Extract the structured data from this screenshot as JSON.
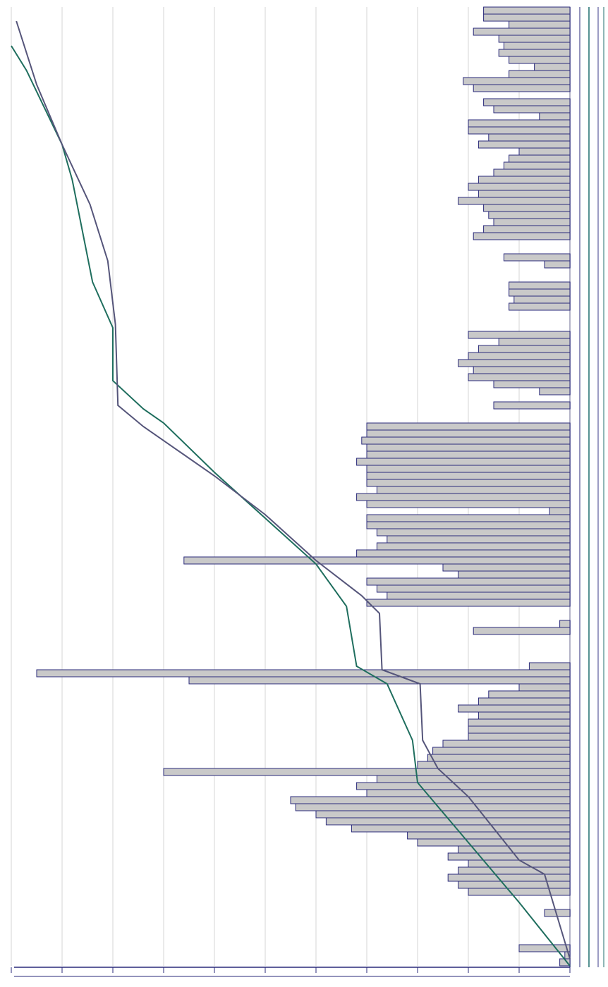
{
  "chart_data": {
    "type": "bar",
    "x": [
      0,
      1,
      2,
      3,
      4,
      5,
      6,
      7,
      8,
      9,
      10,
      11,
      12,
      13,
      14,
      15,
      16,
      17,
      18,
      19,
      20,
      21,
      22,
      23,
      24,
      25,
      26,
      27,
      28,
      29,
      30,
      31,
      32,
      33,
      34,
      35,
      36,
      37,
      38,
      39,
      40,
      41,
      42,
      43,
      44,
      45,
      46,
      47,
      48,
      49,
      50,
      51,
      52,
      53,
      54,
      55,
      56,
      57,
      58,
      59,
      60,
      61,
      62,
      63,
      64,
      65,
      66,
      67,
      68,
      69,
      70,
      71,
      72,
      73,
      74,
      75,
      76,
      77,
      78,
      79,
      80,
      81,
      82,
      83,
      84,
      85,
      86,
      87,
      88,
      89,
      90,
      91,
      92,
      93,
      94,
      95,
      96,
      97,
      98,
      99,
      100,
      101,
      102,
      103,
      104,
      105,
      106,
      107,
      108,
      109,
      110,
      111,
      112,
      113,
      114,
      115,
      116,
      117,
      118,
      119,
      120,
      121,
      122,
      123,
      124,
      125,
      126,
      127,
      128,
      129,
      130,
      131,
      132,
      133,
      134,
      135
    ],
    "values": [
      2,
      1,
      10,
      null,
      null,
      null,
      null,
      5,
      null,
      null,
      20,
      22,
      24,
      22,
      20,
      24,
      22,
      30,
      32,
      43,
      48,
      50,
      54,
      55,
      40,
      42,
      38,
      80,
      30,
      28,
      27,
      25,
      20,
      20,
      20,
      18,
      22,
      18,
      16,
      10,
      75,
      105,
      8,
      null,
      null,
      null,
      null,
      19,
      2,
      null,
      null,
      40,
      36,
      38,
      40,
      22,
      25,
      76,
      42,
      38,
      36,
      38,
      40,
      40,
      4,
      40,
      42,
      38,
      40,
      40,
      40,
      42,
      40,
      40,
      41,
      40,
      40,
      null,
      null,
      15,
      null,
      6,
      15,
      20,
      19,
      22,
      20,
      18,
      14,
      20,
      null,
      null,
      null,
      12,
      11,
      12,
      12,
      null,
      null,
      5,
      13,
      null,
      null,
      19,
      17,
      15,
      16,
      17,
      22,
      18,
      20,
      18,
      15,
      13,
      12,
      10,
      18,
      16,
      20,
      20,
      6,
      15,
      17,
      null,
      19,
      21,
      12,
      7,
      12,
      14,
      13,
      14,
      19,
      12,
      17,
      17
    ],
    "color": "#c9c9c9",
    "xlim": [
      0,
      136
    ],
    "ylim": [
      0,
      110
    ],
    "yticks": [
      0,
      10,
      20,
      30,
      40,
      50,
      60,
      70,
      80,
      90,
      100,
      110
    ],
    "grid": true,
    "lines": [
      {
        "color": "#1f6e5e",
        "x": [
          0,
          9,
          26,
          32,
          40,
          42.5,
          51,
          57,
          63.5,
          70,
          77,
          79,
          83,
          90.5,
          97,
          111.5,
          116.5,
          127,
          130.5
        ],
        "values": [
          0,
          10,
          30,
          31,
          36,
          42,
          44,
          50,
          60,
          70,
          80,
          84,
          90,
          90,
          94,
          98,
          100,
          107,
          110
        ]
      },
      {
        "color": "#55557a",
        "x": [
          1,
          13,
          15,
          24,
          28,
          32,
          40,
          42,
          50,
          52.5,
          57.5,
          64,
          69.5,
          76.5,
          79.5,
          91,
          100,
          108,
          116.5,
          125,
          134
        ],
        "values": [
          0,
          5,
          10,
          20,
          26,
          29,
          29.5,
          37,
          37.5,
          41,
          50,
          60,
          70,
          84,
          89,
          89.5,
          91,
          94.5,
          100,
          105,
          109
        ]
      }
    ]
  }
}
